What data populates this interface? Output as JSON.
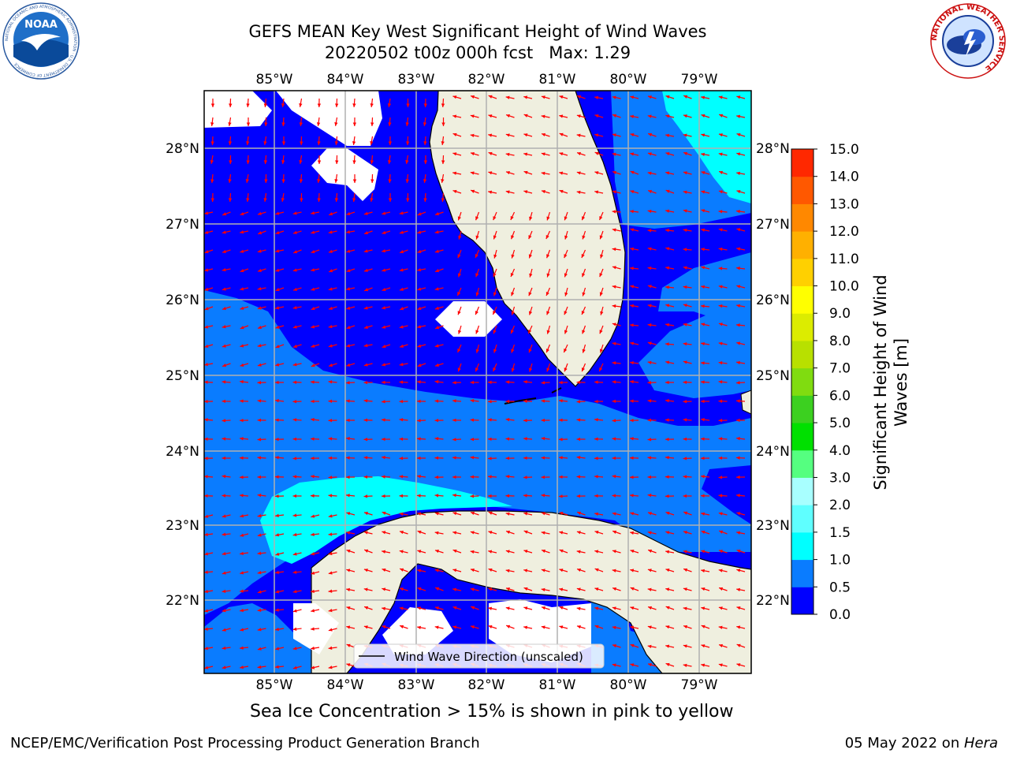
{
  "header": {
    "title_line1": "GEFS MEAN Key West Significant Height of Wind Waves",
    "title_line2": "20220502 t00z 000h fcst   Max: 1.29"
  },
  "logos": {
    "left": {
      "name": "NOAA",
      "ring_text": "NATIONAL OCEANIC AND ATMOSPHERIC ADMINISTRATION · U.S. DEPARTMENT OF COMMERCE"
    },
    "right": {
      "name": "National Weather Service",
      "ring_text": "NATIONAL WEATHER SERVICE"
    }
  },
  "map": {
    "lon_ticks": [
      "85°W",
      "84°W",
      "83°W",
      "82°W",
      "81°W",
      "80°W",
      "79°W"
    ],
    "lat_ticks": [
      "28°N",
      "27°N",
      "26°N",
      "25°N",
      "24°N",
      "23°N",
      "22°N"
    ],
    "legend_label": "Wind Wave Direction (unscaled)",
    "colors": {
      "water_0_05": "#0000ff",
      "water_05_10": "#0a7cff",
      "water_10_15": "#00ffff",
      "land": "#efefdf",
      "arrows": "#ff0000"
    }
  },
  "colorbar": {
    "label_line1": "Significant Height of Wind",
    "label_line2": "Waves [m]",
    "ticks": [
      "0.0",
      "0.5",
      "1.0",
      "1.5",
      "2.0",
      "3.0",
      "4.0",
      "5.0",
      "6.0",
      "7.0",
      "8.0",
      "9.0",
      "10.0",
      "11.0",
      "12.0",
      "13.0",
      "14.0",
      "15.0"
    ],
    "colors": [
      "#0000ff",
      "#0a7cff",
      "#00ffff",
      "#5fffff",
      "#a8ffff",
      "#55ff80",
      "#00e000",
      "#3cd020",
      "#80dc10",
      "#b8e000",
      "#dcec00",
      "#ffff00",
      "#ffd000",
      "#ffb000",
      "#ff8800",
      "#ff5800",
      "#ff2800",
      "#ff0000"
    ]
  },
  "notes": {
    "sea_ice": "Sea Ice Concentration > 15% is shown in pink to yellow"
  },
  "footer": {
    "left": "NCEP/EMC/Verification Post Processing Product Generation Branch",
    "right_date": "05 May 2022 on ",
    "right_host": "Hera"
  }
}
